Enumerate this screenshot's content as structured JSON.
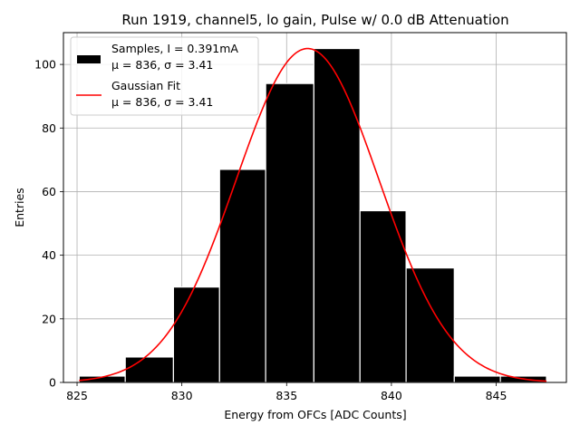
{
  "chart_data": {
    "type": "bar",
    "title": "Run 1919, channel5, lo gain, Pulse w/ 0.0 dB Attenuation",
    "xlabel": "Energy from OFCs [ADC Counts]",
    "ylabel": "Entries",
    "xlim": [
      824.35,
      848.35
    ],
    "ylim": [
      0,
      110
    ],
    "xticks": [
      825,
      830,
      835,
      840,
      845
    ],
    "yticks": [
      0,
      20,
      40,
      60,
      80,
      100
    ],
    "grid": true,
    "legend_position": "top-left",
    "bins": [
      {
        "x0": 825.1,
        "x1": 827.3,
        "count": 2
      },
      {
        "x0": 827.3,
        "x1": 829.6,
        "count": 8
      },
      {
        "x0": 829.6,
        "x1": 831.8,
        "count": 30
      },
      {
        "x0": 831.8,
        "x1": 834.0,
        "count": 67
      },
      {
        "x0": 834.0,
        "x1": 836.3,
        "count": 94
      },
      {
        "x0": 836.3,
        "x1": 838.5,
        "count": 105
      },
      {
        "x0": 838.5,
        "x1": 840.7,
        "count": 54
      },
      {
        "x0": 840.7,
        "x1": 843.0,
        "count": 36
      },
      {
        "x0": 843.0,
        "x1": 845.2,
        "count": 2
      },
      {
        "x0": 845.2,
        "x1": 847.4,
        "count": 2
      }
    ],
    "fit": {
      "name": "Gaussian Fit",
      "mu": 836,
      "sigma": 3.41,
      "amplitude": 105,
      "x_start": 825.1,
      "x_end": 847.4,
      "color": "#ff0000"
    },
    "series": [
      {
        "name": "Samples, I = 0.391mA",
        "sub": "μ = 836, σ = 3.41",
        "color": "#000000"
      },
      {
        "name": "Gaussian Fit",
        "sub": "μ = 836, σ = 3.41",
        "color": "#ff0000"
      }
    ]
  }
}
